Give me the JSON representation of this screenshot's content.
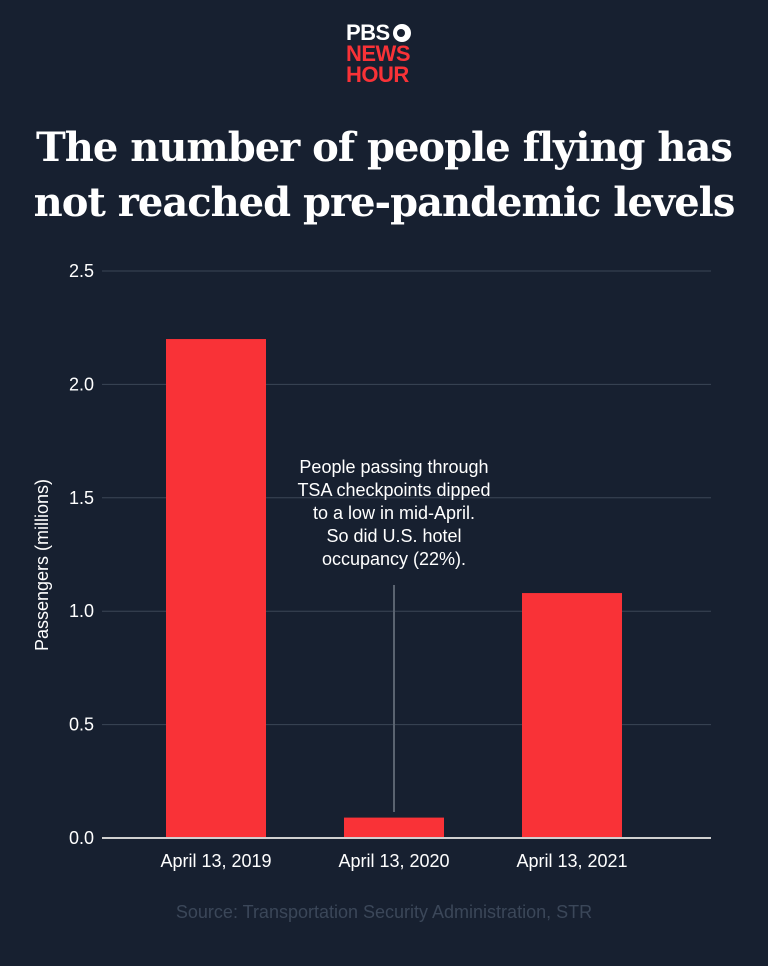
{
  "logo": {
    "line1": "PBS",
    "line2": "NEWS",
    "line3": "HOUR"
  },
  "title_line1": "The number of people flying has",
  "title_line2": "not reached pre-pandemic levels",
  "source": "Source: Transportation Security Administration, STR",
  "chart_data": {
    "type": "bar",
    "title": "The number of people flying has not reached pre-pandemic levels",
    "categories": [
      "April 13, 2019",
      "April 13, 2020",
      "April 13, 2021"
    ],
    "values": [
      2.2,
      0.09,
      1.08
    ],
    "ylabel": "Passengers (millions)",
    "xlabel": "",
    "ylim": [
      0,
      2.5
    ],
    "yticks": [
      "0.0",
      "0.5",
      "1.0",
      "1.5",
      "2.0",
      "2.5"
    ],
    "grid": true,
    "bar_color": "#f93237",
    "annotation": {
      "category": "April 13, 2020",
      "lines": [
        "People passing through",
        "TSA checkpoints dipped",
        "to a low in mid-April.",
        "So did U.S. hotel",
        "occupancy (22%)."
      ]
    }
  }
}
